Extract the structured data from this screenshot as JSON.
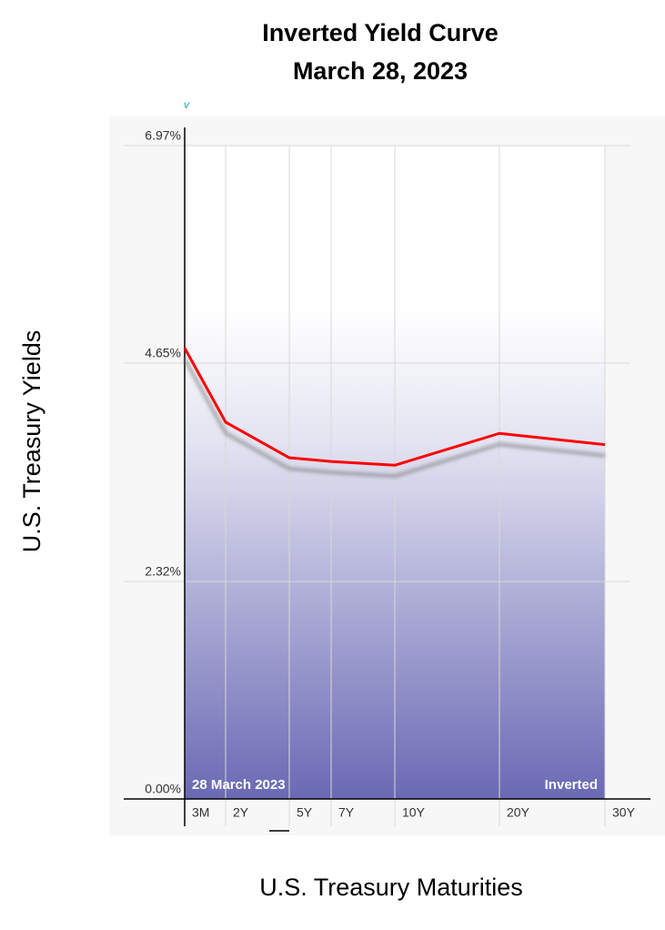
{
  "chart_data": {
    "type": "line",
    "title": "Inverted Yield Curve",
    "subtitle": "March 28, 2023",
    "y_label": "U.S. Treasury Yields",
    "x_label": "U.S. Treasury Maturities",
    "categories": [
      "3M",
      "2Y",
      "5Y",
      "7Y",
      "10Y",
      "20Y",
      "30Y"
    ],
    "series": [
      {
        "name": "28 March 2023",
        "color": "#ff0000",
        "values": [
          4.81,
          4.02,
          3.64,
          3.6,
          3.56,
          3.9,
          3.78
        ]
      }
    ],
    "ylim": [
      0,
      6.97
    ],
    "yticks": [
      {
        "value": 0,
        "label": "0.00%"
      },
      {
        "value": 2.32,
        "label": "2.32%"
      },
      {
        "value": 4.65,
        "label": "4.65%"
      },
      {
        "value": 6.97,
        "label": "6.97%"
      }
    ],
    "annotations": [
      "v",
      "Inverted"
    ],
    "grid": true
  }
}
